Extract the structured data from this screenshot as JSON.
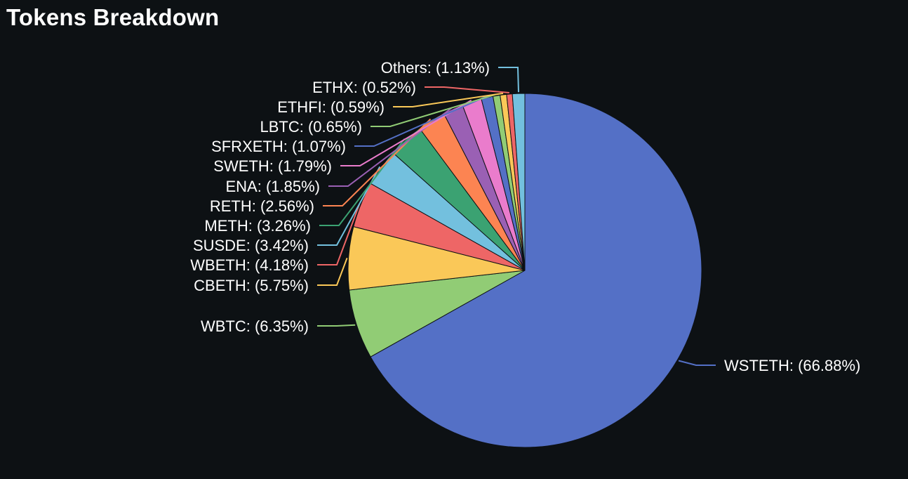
{
  "chart_data": {
    "type": "pie",
    "title": "Tokens Breakdown",
    "slices": [
      {
        "label": "WSTETH: (66.88%)",
        "value": 66.88,
        "color": "#5470c6"
      },
      {
        "label": "WBTC: (6.35%)",
        "value": 6.35,
        "color": "#91cc75"
      },
      {
        "label": "CBETH: (5.75%)",
        "value": 5.75,
        "color": "#fac858"
      },
      {
        "label": "WBETH: (4.18%)",
        "value": 4.18,
        "color": "#ee6666"
      },
      {
        "label": "SUSDE: (3.42%)",
        "value": 3.42,
        "color": "#73c0de"
      },
      {
        "label": "METH: (3.26%)",
        "value": 3.26,
        "color": "#3ba272"
      },
      {
        "label": "RETH: (2.56%)",
        "value": 2.56,
        "color": "#fc8452"
      },
      {
        "label": "ENA: (1.85%)",
        "value": 1.85,
        "color": "#9a60b4"
      },
      {
        "label": "SWETH: (1.79%)",
        "value": 1.79,
        "color": "#ea7ccc"
      },
      {
        "label": "SFRXETH: (1.07%)",
        "value": 1.07,
        "color": "#5470c6"
      },
      {
        "label": "LBTC: (0.65%)",
        "value": 0.65,
        "color": "#91cc75"
      },
      {
        "label": "ETHFI: (0.59%)",
        "value": 0.59,
        "color": "#fac858"
      },
      {
        "label": "ETHX: (0.52%)",
        "value": 0.52,
        "color": "#ee6666"
      },
      {
        "label": "Others: (1.13%)",
        "value": 1.13,
        "color": "#73c0de"
      }
    ]
  }
}
